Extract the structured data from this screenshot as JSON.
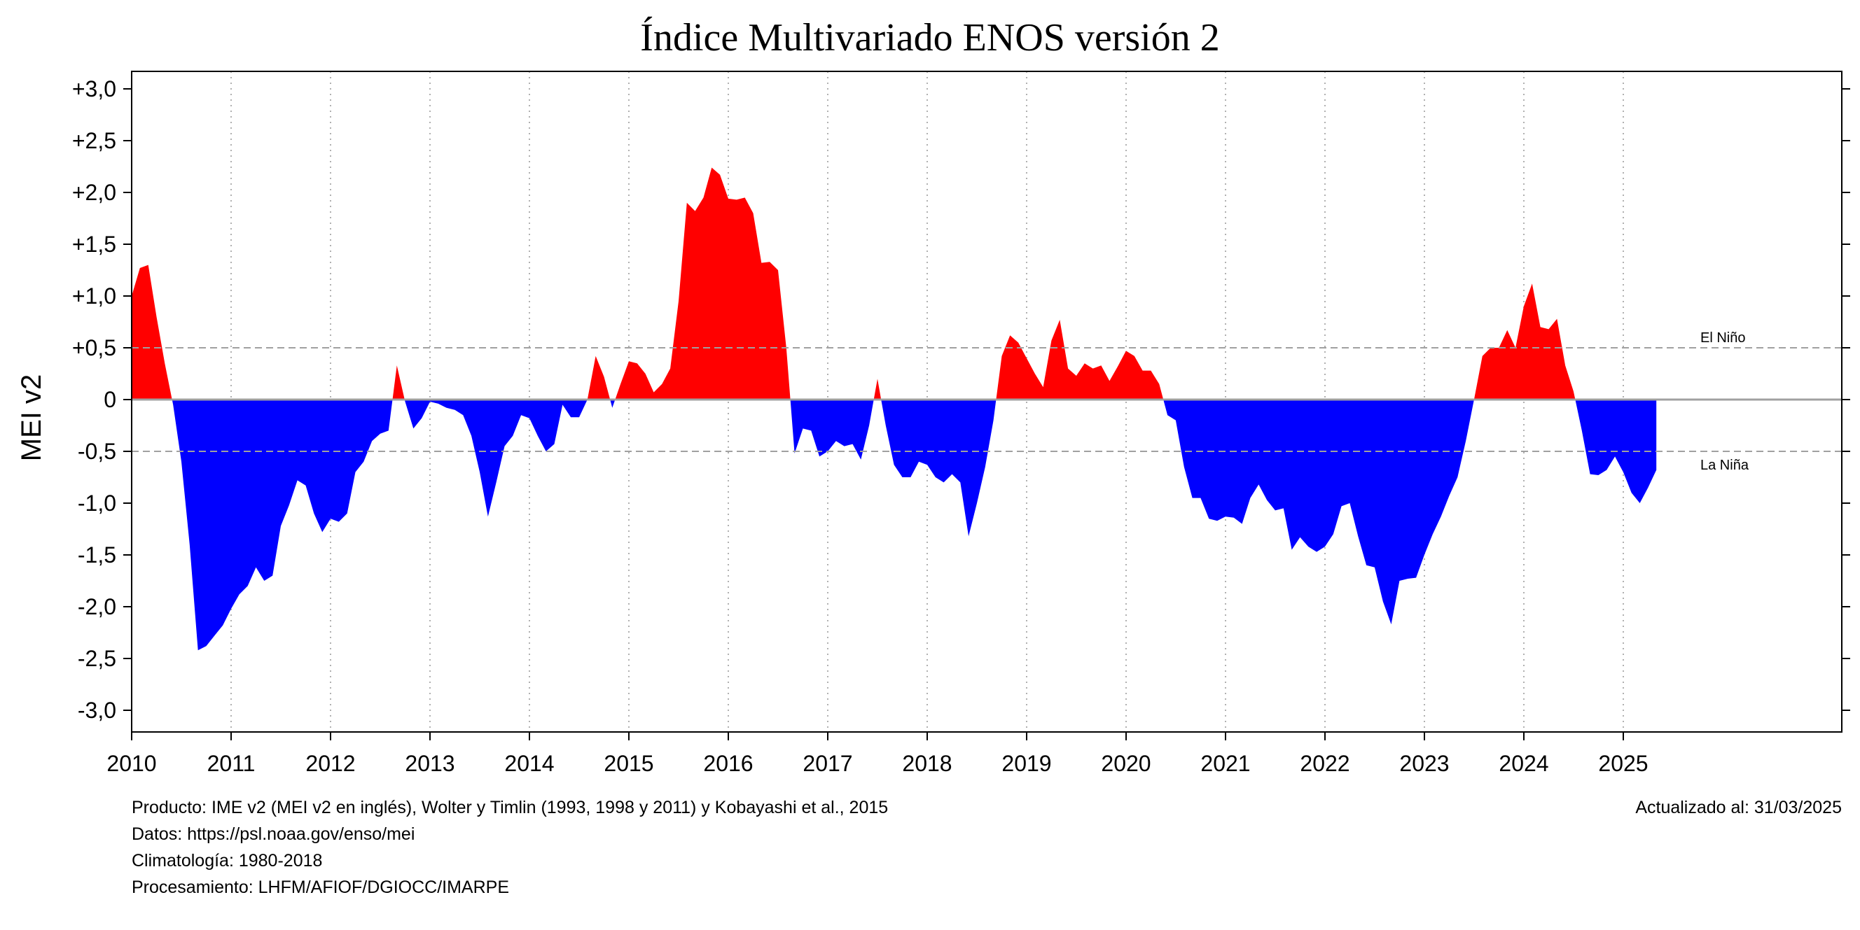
{
  "chart_data": {
    "type": "area",
    "title": "Índice Multivariado ENOS versión 2",
    "ylabel": "MEI v2",
    "xlabel": "",
    "xlim": [
      2010,
      2027.0
    ],
    "ylim": [
      -3.2,
      3.2
    ],
    "grid": "vertical dotted at each year",
    "y_ticks": [
      {
        "value": 3.0,
        "label": "+3,0"
      },
      {
        "value": 2.5,
        "label": "+2,5"
      },
      {
        "value": 2.0,
        "label": "+2,0"
      },
      {
        "value": 1.5,
        "label": "+1,5"
      },
      {
        "value": 1.0,
        "label": "+1,0"
      },
      {
        "value": 0.5,
        "label": "+0,5"
      },
      {
        "value": 0.0,
        "label": "0"
      },
      {
        "value": -0.5,
        "label": "-0,5"
      },
      {
        "value": -1.0,
        "label": "-1,0"
      },
      {
        "value": -1.5,
        "label": "-1,5"
      },
      {
        "value": -2.0,
        "label": "-2,0"
      },
      {
        "value": -2.5,
        "label": "-2,5"
      },
      {
        "value": -3.0,
        "label": "-3,0"
      }
    ],
    "x_ticks": [
      2010,
      2011,
      2012,
      2013,
      2014,
      2015,
      2016,
      2017,
      2018,
      2019,
      2020,
      2021,
      2022,
      2023,
      2024,
      2025
    ],
    "positive_color": "#ff0000",
    "negative_color": "#0000ff",
    "zero_line_color": "#a0a0a0",
    "reference_lines": [
      {
        "value": 0.5,
        "label": "El Niño"
      },
      {
        "value": -0.5,
        "label": "La Niña"
      }
    ],
    "x_start": 2010.0,
    "x_step": 0.08333,
    "values": [
      1.0,
      1.27,
      1.3,
      0.8,
      0.35,
      -0.05,
      -0.6,
      -1.4,
      -2.42,
      -2.38,
      -2.28,
      -2.18,
      -2.02,
      -1.88,
      -1.8,
      -1.62,
      -1.75,
      -1.7,
      -1.22,
      -1.02,
      -0.78,
      -0.83,
      -1.1,
      -1.28,
      -1.15,
      -1.18,
      -1.1,
      -0.7,
      -0.6,
      -0.4,
      -0.33,
      -0.3,
      0.33,
      -0.02,
      -0.28,
      -0.18,
      -0.02,
      -0.04,
      -0.08,
      -0.1,
      -0.15,
      -0.35,
      -0.7,
      -1.13,
      -0.8,
      -0.45,
      -0.35,
      -0.15,
      -0.18,
      -0.35,
      -0.5,
      -0.43,
      -0.05,
      -0.17,
      -0.17,
      0.0,
      0.42,
      0.22,
      -0.08,
      0.15,
      0.37,
      0.35,
      0.25,
      0.07,
      0.15,
      0.3,
      0.95,
      1.9,
      1.82,
      1.95,
      2.24,
      2.17,
      1.94,
      1.93,
      1.95,
      1.8,
      1.32,
      1.33,
      1.25,
      0.5,
      -0.52,
      -0.28,
      -0.3,
      -0.55,
      -0.5,
      -0.4,
      -0.45,
      -0.43,
      -0.58,
      -0.25,
      0.2,
      -0.25,
      -0.63,
      -0.75,
      -0.75,
      -0.6,
      -0.63,
      -0.75,
      -0.8,
      -0.72,
      -0.8,
      -1.32,
      -1.0,
      -0.65,
      -0.2,
      0.42,
      0.62,
      0.55,
      0.4,
      0.25,
      0.12,
      0.57,
      0.77,
      0.3,
      0.23,
      0.35,
      0.3,
      0.33,
      0.18,
      0.32,
      0.47,
      0.42,
      0.28,
      0.28,
      0.15,
      -0.15,
      -0.2,
      -0.65,
      -0.95,
      -0.95,
      -1.15,
      -1.17,
      -1.13,
      -1.14,
      -1.2,
      -0.95,
      -0.82,
      -0.97,
      -1.07,
      -1.05,
      -1.45,
      -1.33,
      -1.42,
      -1.47,
      -1.42,
      -1.3,
      -1.03,
      -1.0,
      -1.32,
      -1.6,
      -1.62,
      -1.95,
      -2.17,
      -1.75,
      -1.73,
      -1.72,
      -1.5,
      -1.3,
      -1.13,
      -0.93,
      -0.75,
      -0.4,
      0.0,
      0.42,
      0.5,
      0.5,
      0.67,
      0.5,
      0.9,
      1.12,
      0.7,
      0.68,
      0.78,
      0.33,
      0.08,
      -0.3,
      -0.72,
      -0.73,
      -0.68,
      -0.55,
      -0.7,
      -0.9,
      -1.0,
      -0.85,
      -0.68
    ]
  },
  "footer": {
    "line1": "Producto: IME v2 (MEI v2 en inglés), Wolter y Timlin (1993, 1998 y 2011) y Kobayashi et al., 2015",
    "line2": "Datos: https://psl.noaa.gov/enso/mei",
    "line3": "Climatología: 1980-2018",
    "line4": "Procesamiento: LHFM/AFIOF/DGIOCC/IMARPE",
    "updated": "Actualizado al: 31/03/2025"
  }
}
